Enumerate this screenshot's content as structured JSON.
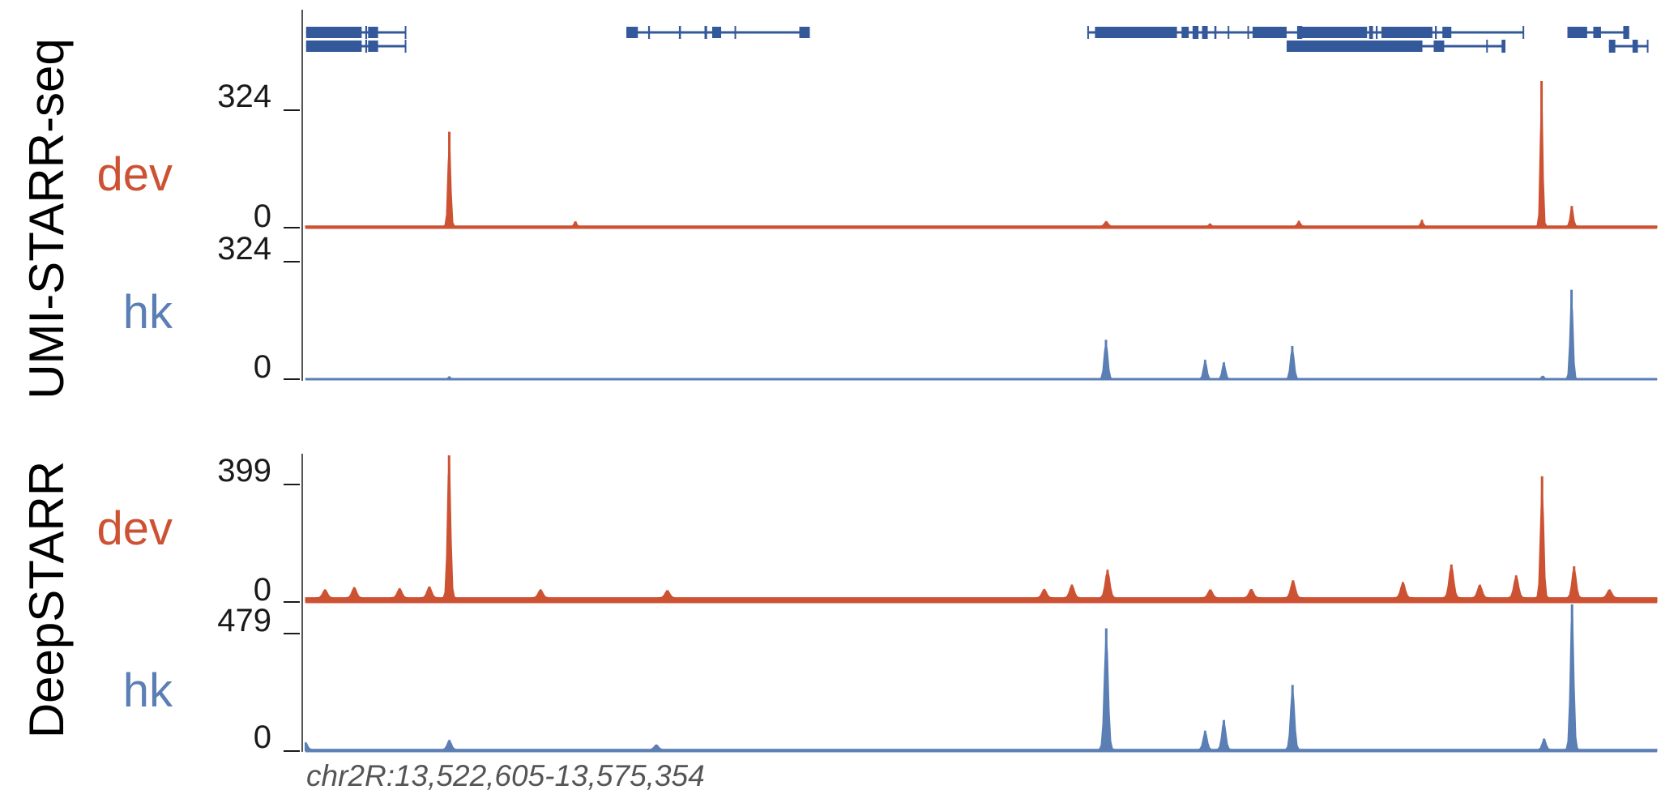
{
  "colors": {
    "dev": "#cc5233",
    "hk": "#5b7fb5",
    "gene": "#34599a",
    "axis": "#555555",
    "text": "#000000"
  },
  "region": "chr2R:13,522,605-13,575,354",
  "groups": [
    {
      "label": "UMI-STARR-seq"
    },
    {
      "label": "DeepSTARR"
    }
  ],
  "tracks": [
    {
      "label": "dev",
      "color": "dev",
      "max_label": "324",
      "min_label": "0"
    },
    {
      "label": "hk",
      "color": "hk",
      "max_label": "324",
      "min_label": "0"
    },
    {
      "label": "dev",
      "color": "dev",
      "max_label": "399",
      "min_label": "0"
    },
    {
      "label": "hk",
      "color": "hk",
      "max_label": "479",
      "min_label": "0"
    }
  ],
  "chart_data": {
    "type": "area",
    "x_range": [
      13522605,
      13575354
    ],
    "x_unit": "bp",
    "series": [
      {
        "name": "dev",
        "group": "UMI-STARR-seq",
        "ylim": [
          0,
          324
        ],
        "baseline": 4,
        "peaks": [
          {
            "x": 13528220,
            "y": 208,
            "w": 120
          },
          {
            "x": 13533140,
            "y": 10,
            "w": 100
          },
          {
            "x": 13553860,
            "y": 10,
            "w": 150
          },
          {
            "x": 13557910,
            "y": 5,
            "w": 80
          },
          {
            "x": 13561380,
            "y": 11,
            "w": 120
          },
          {
            "x": 13566180,
            "y": 13,
            "w": 100
          },
          {
            "x": 13570850,
            "y": 324,
            "w": 110
          },
          {
            "x": 13572030,
            "y": 44,
            "w": 130
          }
        ]
      },
      {
        "name": "hk",
        "group": "UMI-STARR-seq",
        "ylim": [
          0,
          324
        ],
        "baseline": 1,
        "peaks": [
          {
            "x": 13528220,
            "y": 8,
            "w": 100
          },
          {
            "x": 13553850,
            "y": 128,
            "w": 160
          },
          {
            "x": 13557720,
            "y": 62,
            "w": 150
          },
          {
            "x": 13558450,
            "y": 54,
            "w": 150
          },
          {
            "x": 13561120,
            "y": 108,
            "w": 160
          },
          {
            "x": 13570900,
            "y": 10,
            "w": 120
          },
          {
            "x": 13572020,
            "y": 292,
            "w": 130
          }
        ]
      },
      {
        "name": "dev",
        "group": "DeepSTARR",
        "ylim": [
          0,
          399
        ],
        "baseline": 12,
        "peaks": [
          {
            "x": 13523370,
            "y": 22,
            "w": 200
          },
          {
            "x": 13524510,
            "y": 28,
            "w": 200
          },
          {
            "x": 13526280,
            "y": 25,
            "w": 200
          },
          {
            "x": 13527440,
            "y": 30,
            "w": 200
          },
          {
            "x": 13528210,
            "y": 399,
            "w": 140
          },
          {
            "x": 13531780,
            "y": 22,
            "w": 200
          },
          {
            "x": 13536730,
            "y": 20,
            "w": 200
          },
          {
            "x": 13551440,
            "y": 23,
            "w": 200
          },
          {
            "x": 13552520,
            "y": 35,
            "w": 200
          },
          {
            "x": 13553910,
            "y": 75,
            "w": 200
          },
          {
            "x": 13557920,
            "y": 22,
            "w": 200
          },
          {
            "x": 13559520,
            "y": 23,
            "w": 200
          },
          {
            "x": 13561150,
            "y": 47,
            "w": 200
          },
          {
            "x": 13565440,
            "y": 42,
            "w": 200
          },
          {
            "x": 13567330,
            "y": 90,
            "w": 200
          },
          {
            "x": 13568440,
            "y": 35,
            "w": 200
          },
          {
            "x": 13569860,
            "y": 60,
            "w": 200
          },
          {
            "x": 13570870,
            "y": 330,
            "w": 140
          },
          {
            "x": 13572120,
            "y": 85,
            "w": 180
          },
          {
            "x": 13573500,
            "y": 22,
            "w": 200
          }
        ]
      },
      {
        "name": "hk",
        "group": "DeepSTARR",
        "ylim": [
          0,
          479
        ],
        "baseline": 6,
        "peaks": [
          {
            "x": 13522620,
            "y": 22,
            "w": 150
          },
          {
            "x": 13528220,
            "y": 30,
            "w": 180
          },
          {
            "x": 13536300,
            "y": 15,
            "w": 180
          },
          {
            "x": 13553860,
            "y": 395,
            "w": 170
          },
          {
            "x": 13557720,
            "y": 60,
            "w": 170
          },
          {
            "x": 13558450,
            "y": 95,
            "w": 170
          },
          {
            "x": 13561130,
            "y": 210,
            "w": 170
          },
          {
            "x": 13570950,
            "y": 35,
            "w": 160
          },
          {
            "x": 13572040,
            "y": 479,
            "w": 150
          }
        ]
      }
    ],
    "genes": [
      {
        "strand": "+",
        "exons": [
          [
            13522630,
            13524800
          ],
          [
            13524940,
            13525010
          ],
          [
            13525050,
            13525440
          ],
          [
            13526480,
            13526520
          ]
        ]
      },
      {
        "strand": "+",
        "exons": [
          [
            13522630,
            13524800
          ],
          [
            13524940,
            13525010
          ],
          [
            13525050,
            13525440
          ],
          [
            13526480,
            13526520
          ]
        ]
      },
      {
        "strand": "+",
        "exons": [
          [
            13535130,
            13535580
          ],
          [
            13535980,
            13536050
          ],
          [
            13537180,
            13537260
          ],
          [
            13538180,
            13538280
          ],
          [
            13538480,
            13538830
          ],
          [
            13539350,
            13539360
          ],
          [
            13541880,
            13542290
          ]
        ]
      },
      {
        "strand": "+",
        "exons": [
          [
            13553120,
            13553160
          ],
          [
            13553420,
            13556620
          ],
          [
            13556800,
            13557080
          ],
          [
            13557230,
            13557460
          ],
          [
            13557600,
            13557820
          ],
          [
            13558080,
            13558160
          ],
          [
            13558600,
            13558640
          ],
          [
            13559370,
            13559400
          ],
          [
            13559570,
            13560900
          ],
          [
            13561310,
            13561510
          ]
        ]
      },
      {
        "strand": "+",
        "exons": [
          [
            13560900,
            13566200
          ],
          [
            13566640,
            13567050
          ],
          [
            13568690,
            13568720
          ],
          [
            13569290,
            13569440
          ]
        ]
      },
      {
        "strand": "+",
        "exons": [
          [
            13561320,
            13564040
          ],
          [
            13564120,
            13564270
          ],
          [
            13564380,
            13564450
          ],
          [
            13564600,
            13566590
          ],
          [
            13566690,
            13566760
          ],
          [
            13566980,
            13567330
          ],
          [
            13570110,
            13570120
          ]
        ]
      },
      {
        "strand": "+",
        "exons": [
          [
            13571860,
            13572630
          ],
          [
            13572870,
            13573170
          ],
          [
            13574040,
            13574270
          ]
        ]
      },
      {
        "strand": "+",
        "exons": [
          [
            13573480,
            13573730
          ],
          [
            13574400,
            13574610
          ],
          [
            13574960,
            13575000
          ]
        ]
      }
    ]
  }
}
